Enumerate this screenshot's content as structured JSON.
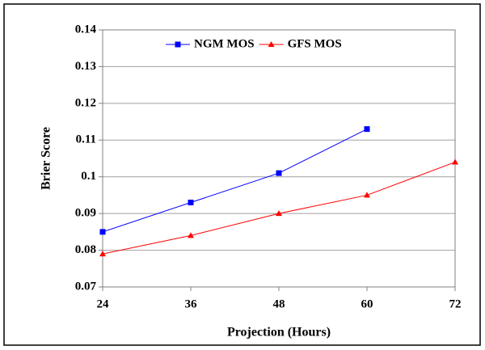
{
  "chart_data": {
    "type": "line",
    "xlabel": "Projection (Hours)",
    "ylabel": "Brier Score",
    "x": [
      24,
      36,
      48,
      60,
      72
    ],
    "series": [
      {
        "name": "NGM MOS",
        "color": "#0000ff",
        "marker": "square",
        "values": [
          0.085,
          0.093,
          0.101,
          0.113,
          null
        ]
      },
      {
        "name": "GFS MOS",
        "color": "#ff0000",
        "marker": "triangle",
        "values": [
          0.079,
          0.084,
          0.09,
          0.095,
          0.104
        ]
      }
    ],
    "xlim": [
      24,
      72
    ],
    "xticks": [
      24,
      36,
      48,
      60,
      72
    ],
    "ylim": [
      0.07,
      0.14
    ],
    "yticks": [
      0.07,
      0.08,
      0.09,
      0.1,
      0.11,
      0.12,
      0.13,
      0.14
    ],
    "grid": true,
    "legend": "upper center"
  }
}
